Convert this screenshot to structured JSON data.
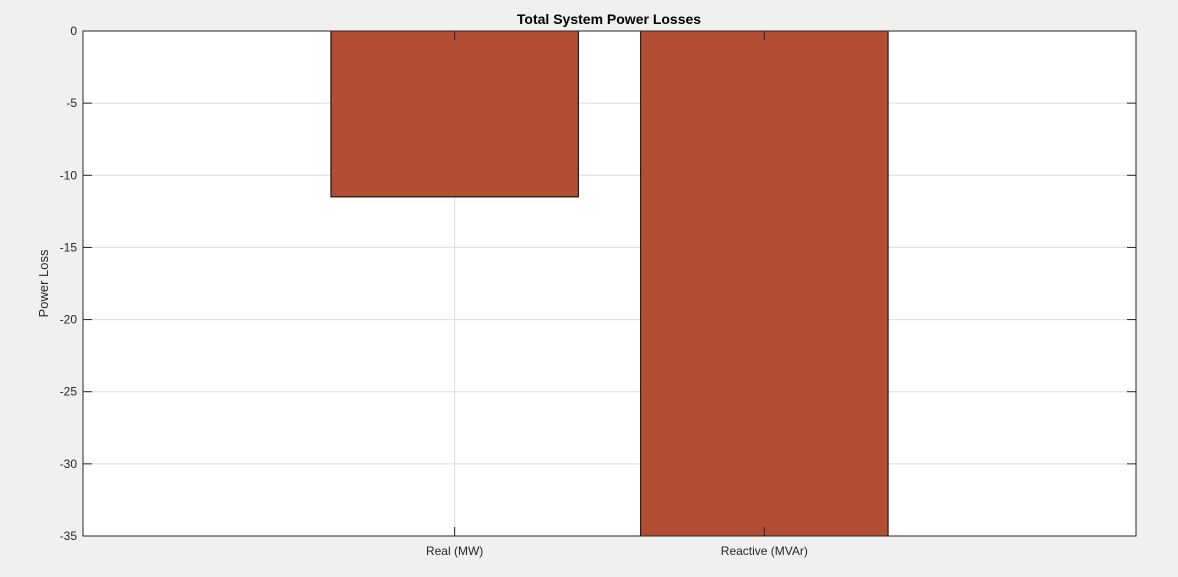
{
  "chart_data": {
    "type": "bar",
    "title": "Total System Power Losses",
    "xlabel": "",
    "ylabel": "Power Loss",
    "categories": [
      "Real (MW)",
      "Reactive (MVAr)"
    ],
    "values": [
      -11.5,
      -35
    ],
    "ylim": [
      -35,
      0
    ],
    "yticks": [
      0,
      -5,
      -10,
      -15,
      -20,
      -25,
      -30,
      -35
    ],
    "ytick_labels": [
      "0",
      "-5",
      "-10",
      "-15",
      "-20",
      "-25",
      "-30",
      "-35"
    ],
    "grid": true,
    "bar_color": "#b34e35",
    "edge_color": "#000000",
    "background_color": "#f0f0f0",
    "plot_background_color": "#ffffff",
    "grid_color": "#dcdcdc"
  }
}
